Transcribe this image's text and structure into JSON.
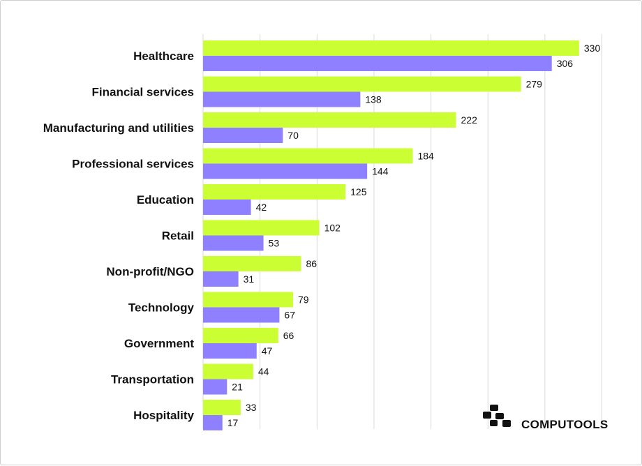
{
  "chart_data": {
    "type": "bar",
    "orientation": "horizontal",
    "categories": [
      "Healthcare",
      "Financial services",
      "Manufacturing and utilities",
      "Professional services",
      "Education",
      "Retail",
      "Non-profit/NGO",
      "Technology",
      "Government",
      "Transportation",
      "Hospitality"
    ],
    "series": [
      {
        "color": "#ccff33",
        "values": [
          330,
          279,
          222,
          184,
          125,
          102,
          86,
          79,
          66,
          44,
          33
        ]
      },
      {
        "color": "#8f80ff",
        "values": [
          306,
          138,
          70,
          144,
          42,
          53,
          31,
          67,
          47,
          21,
          17
        ]
      }
    ],
    "xlim": [
      0,
      350
    ],
    "grid": true,
    "legend": "none"
  },
  "brand": {
    "name": "COMPUTOOLS",
    "logo_icon": "computools-logo-icon"
  }
}
